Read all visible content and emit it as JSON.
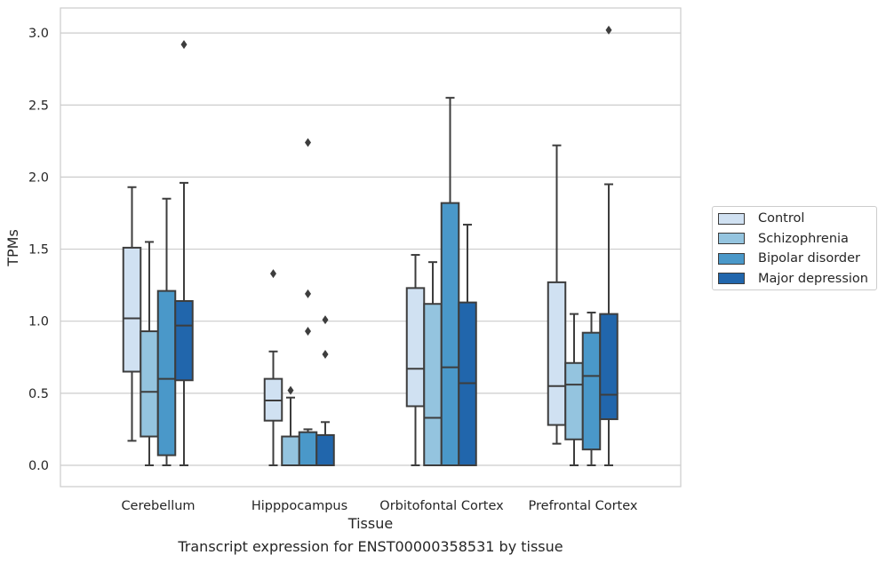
{
  "chart_data": {
    "type": "box",
    "title": "",
    "caption": "Transcript expression for ENST00000358531 by tissue",
    "xlabel": "Tissue",
    "ylabel": "TPMs",
    "ylim": [
      -0.15,
      3.17
    ],
    "yticks": [
      "0.0",
      "0.5",
      "1.0",
      "1.5",
      "2.0",
      "2.5",
      "3.0"
    ],
    "grid": "horizontal",
    "legend_position": "outside-right",
    "categories": [
      "Cerebellum",
      "Hipppocampus",
      "Orbitofontal Cortex",
      "Prefrontal Cortex"
    ],
    "series": [
      {
        "name": "Control",
        "color": "#d0e1f2",
        "boxes": [
          {
            "whisker_low": 0.17,
            "q1": 0.65,
            "median": 1.02,
            "q3": 1.51,
            "whisker_high": 1.93,
            "outliers": []
          },
          {
            "whisker_low": 0.0,
            "q1": 0.31,
            "median": 0.45,
            "q3": 0.6,
            "whisker_high": 0.79,
            "outliers": [
              1.33
            ]
          },
          {
            "whisker_low": 0.0,
            "q1": 0.41,
            "median": 0.67,
            "q3": 1.23,
            "whisker_high": 1.46,
            "outliers": []
          },
          {
            "whisker_low": 0.15,
            "q1": 0.28,
            "median": 0.55,
            "q3": 1.27,
            "whisker_high": 2.22,
            "outliers": []
          }
        ]
      },
      {
        "name": "Schizophrenia",
        "color": "#94c4df",
        "boxes": [
          {
            "whisker_low": 0.0,
            "q1": 0.2,
            "median": 0.51,
            "q3": 0.93,
            "whisker_high": 1.55,
            "outliers": []
          },
          {
            "whisker_low": 0.0,
            "q1": 0.0,
            "median": 0.0,
            "q3": 0.2,
            "whisker_high": 0.47,
            "outliers": [
              0.52
            ]
          },
          {
            "whisker_low": 0.0,
            "q1": 0.0,
            "median": 0.33,
            "q3": 1.12,
            "whisker_high": 1.41,
            "outliers": []
          },
          {
            "whisker_low": 0.0,
            "q1": 0.18,
            "median": 0.56,
            "q3": 0.71,
            "whisker_high": 1.05,
            "outliers": []
          }
        ]
      },
      {
        "name": "Bipolar disorder",
        "color": "#4a98c9",
        "boxes": [
          {
            "whisker_low": 0.0,
            "q1": 0.07,
            "median": 0.6,
            "q3": 1.21,
            "whisker_high": 1.85,
            "outliers": []
          },
          {
            "whisker_low": 0.0,
            "q1": 0.0,
            "median": 0.0,
            "q3": 0.23,
            "whisker_high": 0.25,
            "outliers": [
              0.93,
              1.19,
              2.24
            ]
          },
          {
            "whisker_low": 0.0,
            "q1": 0.0,
            "median": 0.68,
            "q3": 1.82,
            "whisker_high": 2.55,
            "outliers": []
          },
          {
            "whisker_low": 0.0,
            "q1": 0.11,
            "median": 0.62,
            "q3": 0.92,
            "whisker_high": 1.06,
            "outliers": []
          }
        ]
      },
      {
        "name": "Major depression",
        "color": "#2166ac",
        "boxes": [
          {
            "whisker_low": 0.0,
            "q1": 0.59,
            "median": 0.97,
            "q3": 1.14,
            "whisker_high": 1.96,
            "outliers": [
              2.92
            ]
          },
          {
            "whisker_low": 0.0,
            "q1": 0.0,
            "median": 0.0,
            "q3": 0.21,
            "whisker_high": 0.3,
            "outliers": [
              0.77,
              1.01
            ]
          },
          {
            "whisker_low": 0.0,
            "q1": 0.0,
            "median": 0.57,
            "q3": 1.13,
            "whisker_high": 1.67,
            "outliers": []
          },
          {
            "whisker_low": 0.0,
            "q1": 0.32,
            "median": 0.49,
            "q3": 1.05,
            "whisker_high": 1.95,
            "outliers": [
              3.02
            ]
          }
        ]
      }
    ]
  }
}
